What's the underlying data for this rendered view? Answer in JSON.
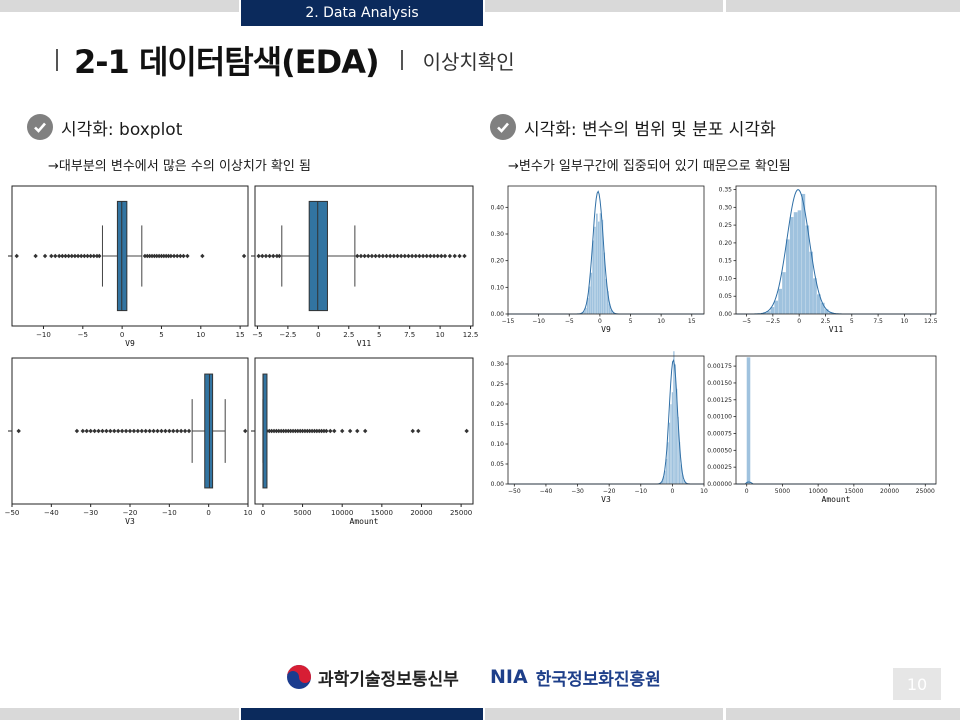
{
  "header": {
    "section_tab": "2. Data Analysis",
    "title": "2-1 데이터탐색(EDA)",
    "subtitle": "이상치확인"
  },
  "left": {
    "heading": "시각화: boxplot",
    "note": "→대부분의 변수에서 많은 수의 이상치가 확인 됨"
  },
  "right": {
    "heading": "시각화: 변수의 범위 및 분포 시각화",
    "note": "→변수가 일부구간에 집중되어 있기 때문으로 확인됨"
  },
  "footer": {
    "ministry": "과학기술정보통신부",
    "nia_logo": "NIA",
    "nia_name": "한국정보화진흥원",
    "page_number": "10"
  },
  "colors": {
    "navy": "#0b2a5c",
    "box_fill": "#3274a1",
    "hist_fill": "#9fc2de",
    "kde_line": "#2f6fa6"
  },
  "chart_data": [
    {
      "type": "boxplot",
      "xlabel": "V9",
      "xlim": [
        -14,
        16
      ],
      "ticks": [
        -10,
        -5,
        0,
        5,
        10,
        15
      ],
      "box": {
        "q1": -0.6,
        "median": -0.05,
        "q3": 0.6,
        "whisker_low": -2.5,
        "whisker_high": 2.5
      },
      "outliers": [
        -13.4,
        -11,
        -9.8,
        -9,
        -8.5,
        -8,
        -7.6,
        -7.2,
        -6.8,
        -6.4,
        -6,
        -5.6,
        -5.2,
        -4.8,
        -4.4,
        -4,
        -3.6,
        -3.2,
        -2.9,
        2.9,
        3.2,
        3.5,
        3.8,
        4.1,
        4.4,
        4.7,
        5,
        5.3,
        5.6,
        5.9,
        6.2,
        6.6,
        7,
        7.4,
        7.8,
        8.3,
        10.2,
        15.5
      ]
    },
    {
      "type": "boxplot",
      "xlabel": "V11",
      "xlim": [
        -5.2,
        12.7
      ],
      "ticks": [
        -5.0,
        -2.5,
        0.0,
        2.5,
        5.0,
        7.5,
        10.0,
        12.5
      ],
      "box": {
        "q1": -0.75,
        "median": -0.05,
        "q3": 0.75,
        "whisker_low": -3.0,
        "whisker_high": 3.0
      },
      "outliers": [
        -4.9,
        -4.6,
        -4.3,
        -4.0,
        -3.7,
        -3.4,
        -3.2,
        3.2,
        3.5,
        3.8,
        4.1,
        4.4,
        4.7,
        5,
        5.3,
        5.6,
        5.9,
        6.2,
        6.5,
        6.8,
        7.1,
        7.4,
        7.7,
        8,
        8.3,
        8.6,
        8.9,
        9.2,
        9.5,
        9.8,
        10.1,
        10.4,
        10.8,
        11.2,
        11.6,
        12
      ]
    },
    {
      "type": "boxplot",
      "xlabel": "V3",
      "xlim": [
        -50,
        10
      ],
      "ticks": [
        -50,
        -40,
        -30,
        -20,
        -10,
        0,
        10
      ],
      "box": {
        "q1": -1.0,
        "median": 0.2,
        "q3": 1.0,
        "whisker_low": -4.2,
        "whisker_high": 4.2
      },
      "outliers": [
        -48.3,
        -33.5,
        -32,
        -31,
        -30,
        -29,
        -28,
        -27,
        -26,
        -25,
        -24,
        -23,
        -22,
        -21,
        -20,
        -19,
        -18,
        -17,
        -16,
        -15,
        -14,
        -13,
        -12,
        -11,
        -10,
        -9,
        -8,
        -7,
        -6,
        -5,
        9.3
      ]
    },
    {
      "type": "boxplot",
      "xlabel": "Amount",
      "xlim": [
        -1000,
        26500
      ],
      "ticks": [
        0,
        5000,
        10000,
        15000,
        20000,
        25000
      ],
      "box": {
        "q1": 5,
        "median": 22,
        "q3": 77,
        "whisker_low": 0,
        "whisker_high": 185
      },
      "outliers": [
        250,
        500,
        800,
        1100,
        1400,
        1700,
        2000,
        2300,
        2600,
        2900,
        3200,
        3500,
        3800,
        4100,
        4400,
        4700,
        5000,
        5300,
        5600,
        5900,
        6200,
        6500,
        6800,
        7100,
        7400,
        7700,
        8000,
        8500,
        9000,
        10000,
        11000,
        11900,
        12900,
        18900,
        19600,
        25700
      ]
    },
    {
      "type": "histogram",
      "xlabel": "V9",
      "xlim": [
        -15,
        17
      ],
      "ylim": [
        0,
        0.48
      ],
      "xticks": [
        -15,
        -10,
        -5,
        0,
        5,
        10,
        15
      ],
      "yticks": [
        0.0,
        0.1,
        0.2,
        0.3,
        0.4
      ],
      "peak": 0.46,
      "center": -0.3,
      "width": 0.85
    },
    {
      "type": "histogram",
      "xlabel": "V11",
      "xlim": [
        -6,
        13
      ],
      "ylim": [
        0,
        0.36
      ],
      "xticks": [
        -5.0,
        -2.5,
        0.0,
        2.5,
        5.0,
        7.5,
        10.0,
        12.5
      ],
      "yticks": [
        0.0,
        0.05,
        0.1,
        0.15,
        0.2,
        0.25,
        0.3,
        0.35
      ],
      "peak": 0.35,
      "center": -0.1,
      "width": 1.05
    },
    {
      "type": "histogram",
      "xlabel": "V3",
      "xlim": [
        -52,
        10
      ],
      "ylim": [
        0,
        0.32
      ],
      "xticks": [
        -50,
        -40,
        -30,
        -20,
        -10,
        0,
        10
      ],
      "yticks": [
        0.0,
        0.05,
        0.1,
        0.15,
        0.2,
        0.25,
        0.3
      ],
      "peak": 0.31,
      "center": 0.3,
      "width": 1.3
    },
    {
      "type": "histogram",
      "xlabel": "Amount",
      "xlim": [
        -1500,
        26500
      ],
      "ylim": [
        0,
        0.0019
      ],
      "xticks": [
        0,
        5000,
        10000,
        15000,
        20000,
        25000
      ],
      "yticks": [
        0.0,
        0.00025,
        0.0005,
        0.00075,
        0.001,
        0.00125,
        0.0015,
        0.00175
      ],
      "bar_value": 0.00188,
      "bar_x": [
        0,
        500
      ]
    }
  ]
}
